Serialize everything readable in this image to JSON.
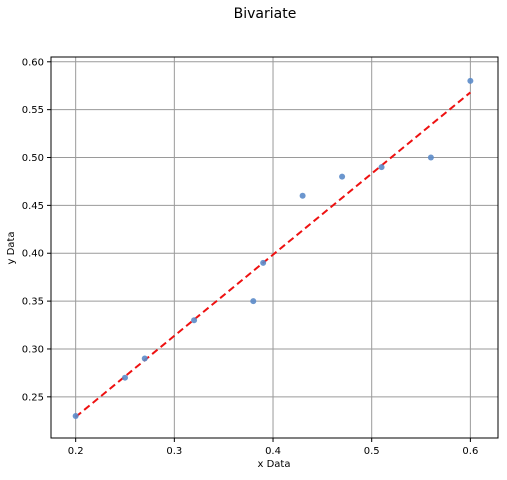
{
  "chart_data": {
    "type": "scatter",
    "title": "Bivariate",
    "xlabel": "x Data",
    "ylabel": "y Data",
    "xlim": [
      0.175,
      0.628
    ],
    "ylim": [
      0.207,
      0.605
    ],
    "xticks": [
      0.2,
      0.3,
      0.4,
      0.5,
      0.6
    ],
    "xtick_labels": [
      "0.2",
      "0.3",
      "0.4",
      "0.5",
      "0.6"
    ],
    "yticks": [
      0.25,
      0.3,
      0.35,
      0.4,
      0.45,
      0.5,
      0.55,
      0.6
    ],
    "ytick_labels": [
      "0.25",
      "0.30",
      "0.35",
      "0.40",
      "0.45",
      "0.50",
      "0.55",
      "0.60"
    ],
    "grid": true,
    "series": [
      {
        "type": "scatter",
        "x": [
          0.2,
          0.25,
          0.27,
          0.32,
          0.38,
          0.39,
          0.43,
          0.47,
          0.51,
          0.56,
          0.6
        ],
        "y": [
          0.23,
          0.27,
          0.29,
          0.33,
          0.35,
          0.39,
          0.46,
          0.48,
          0.49,
          0.5,
          0.58
        ]
      },
      {
        "type": "line",
        "style": "dashed",
        "x": [
          0.2,
          0.6
        ],
        "y": [
          0.229,
          0.568
        ]
      }
    ],
    "colors": {
      "points": "#5b8bc9",
      "fit_line": "#ee1111",
      "grid": "#9a9a9a",
      "axes": "#000000"
    }
  }
}
